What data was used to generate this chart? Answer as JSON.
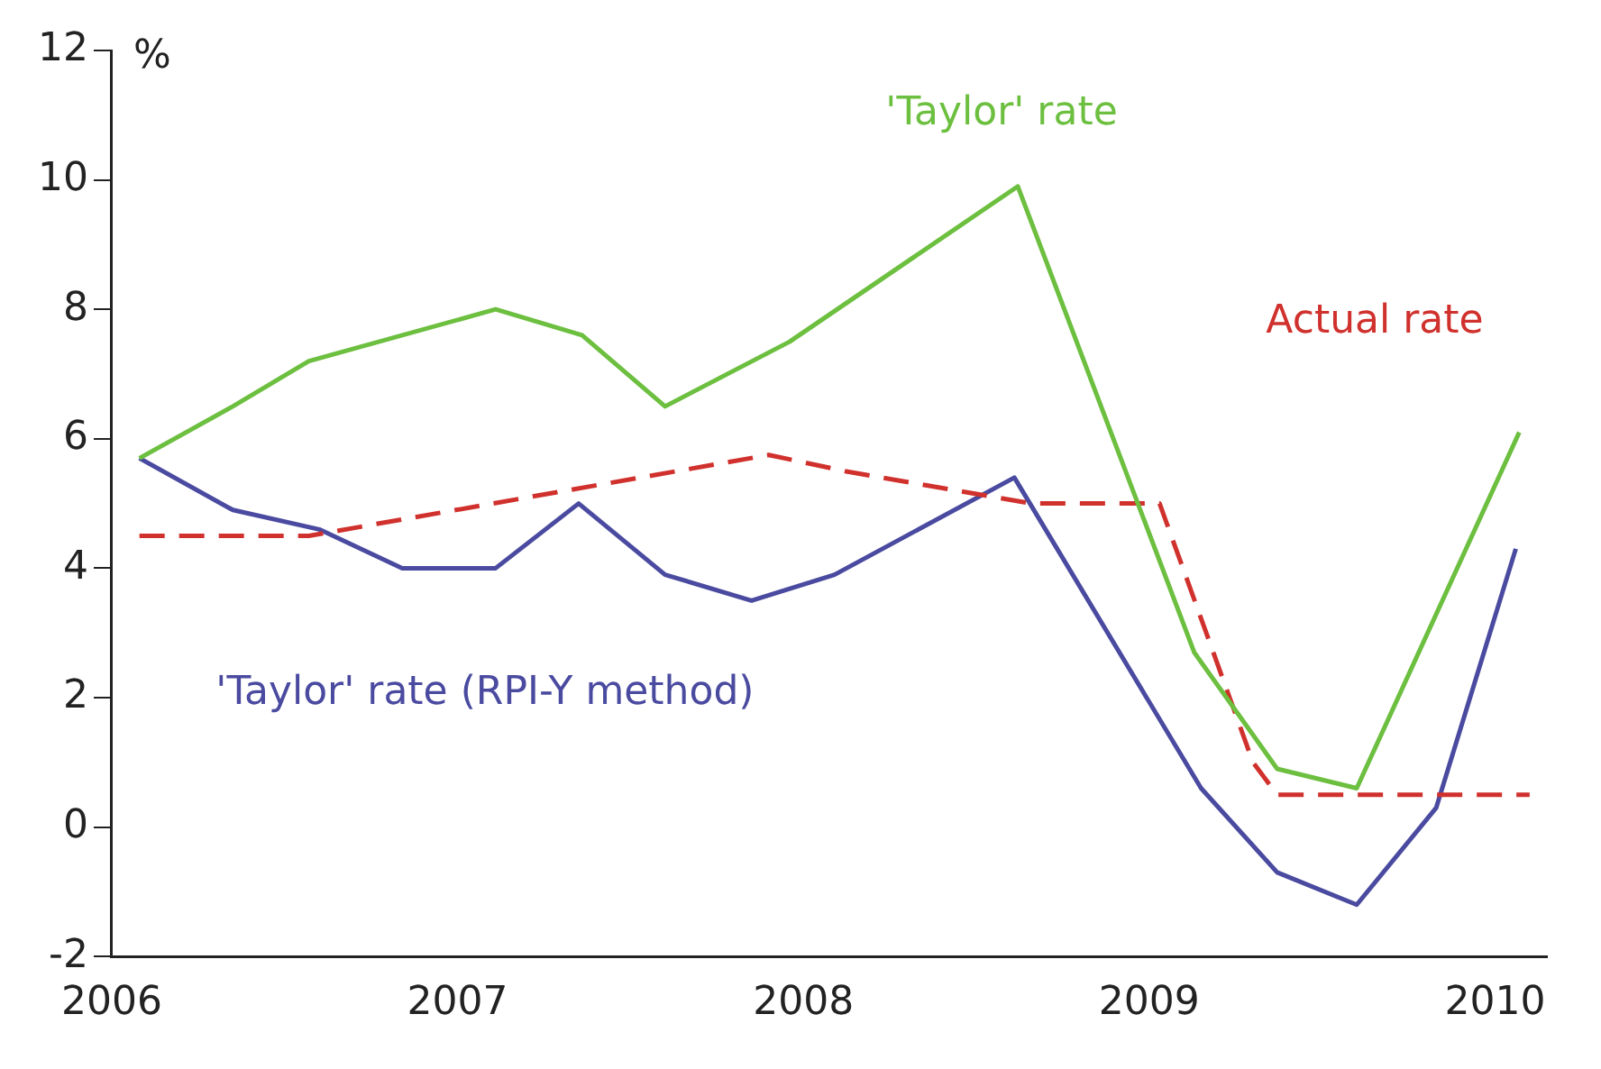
{
  "chart_data": {
    "type": "line",
    "ylabel": "%",
    "xlim": [
      2006,
      2010.15
    ],
    "xticks": [
      2006,
      2007,
      2008,
      2009,
      2010
    ],
    "ylim": [
      -2,
      12
    ],
    "yticks": [
      -2,
      0,
      2,
      4,
      6,
      8,
      10,
      12
    ],
    "grid": false,
    "legend": false,
    "marker": "none",
    "series": [
      {
        "name": "'Taylor' rate",
        "color": "#6cbf3f",
        "x": [
          2006.08,
          2006.35,
          2006.57,
          2007.11,
          2007.36,
          2007.6,
          2007.96,
          2008.62,
          2009.13,
          2009.37,
          2009.6,
          2010.07
        ],
        "values": [
          5.7,
          6.5,
          7.2,
          8.0,
          7.6,
          6.5,
          7.5,
          9.9,
          2.7,
          0.9,
          0.6,
          6.1
        ]
      },
      {
        "name": "Actual rate",
        "color": "#d0312d",
        "line_style": "dashed",
        "x": [
          2006.08,
          2006.57,
          2007.9,
          2008.12,
          2008.66,
          2009.03,
          2009.3,
          2009.37,
          2010.1
        ],
        "values": [
          4.5,
          4.5,
          5.75,
          5.5,
          5.0,
          5.0,
          1.0,
          0.5,
          0.5
        ]
      },
      {
        "name": "'Taylor' rate (RPI-Y method)",
        "color": "#4a4aa0",
        "x": [
          2006.08,
          2006.35,
          2006.6,
          2006.84,
          2007.11,
          2007.35,
          2007.6,
          2007.85,
          2008.09,
          2008.61,
          2009.15,
          2009.37,
          2009.6,
          2009.83,
          2010.06
        ],
        "values": [
          5.7,
          4.9,
          4.6,
          4.0,
          4.0,
          5.0,
          3.9,
          3.5,
          3.9,
          5.4,
          0.6,
          -0.7,
          -1.2,
          0.3,
          4.3
        ]
      }
    ]
  }
}
